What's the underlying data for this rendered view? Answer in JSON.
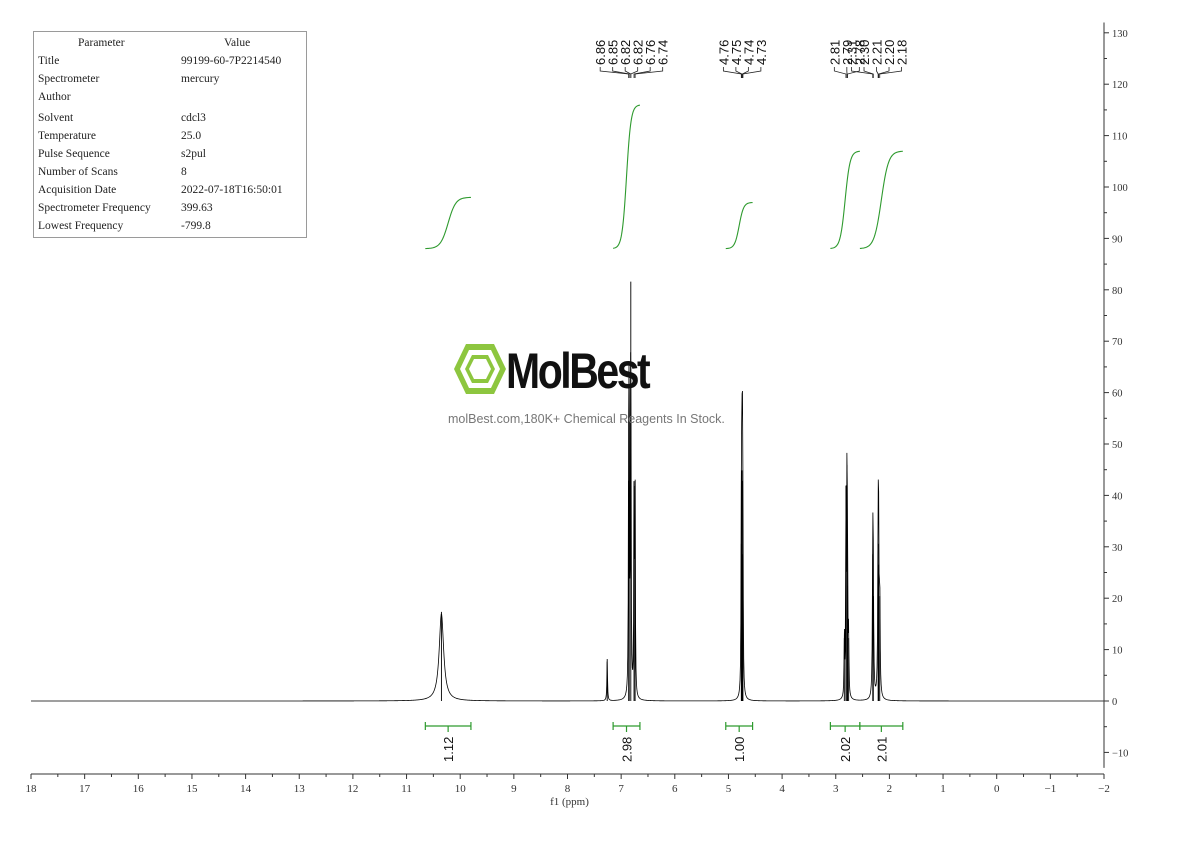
{
  "parameter_table": {
    "header_parameter": "Parameter",
    "header_value": "Value",
    "rows": [
      {
        "label": "Title",
        "value": "99199-60-7P2214540"
      },
      {
        "label": "Spectrometer",
        "value": "mercury"
      },
      {
        "label": "Author",
        "value": ""
      },
      {
        "label": "Solvent",
        "value": "cdcl3"
      },
      {
        "label": "Temperature",
        "value": "25.0"
      },
      {
        "label": "Pulse Sequence",
        "value": "s2pul"
      },
      {
        "label": "Number of Scans",
        "value": "8"
      },
      {
        "label": "Acquisition Date",
        "value": "2022-07-18T16:50:01"
      },
      {
        "label": "Spectrometer Frequency",
        "value": "399.63"
      },
      {
        "label": "Lowest Frequency",
        "value": "-799.8"
      }
    ]
  },
  "watermark": {
    "brand": "MolBest",
    "tagline": "molBest.com,180K+ Chemical Reagents In Stock.",
    "brand_color": "#8dc63f"
  },
  "chart_data": {
    "type": "line",
    "xlabel": "f1 (ppm)",
    "xlim": [
      18,
      -2
    ],
    "ylim": [
      -13,
      132
    ],
    "x_ticks": [
      18,
      17,
      16,
      15,
      14,
      13,
      12,
      11,
      10,
      9,
      8,
      7,
      6,
      5,
      4,
      3,
      2,
      1,
      0,
      -1,
      -2
    ],
    "y_ticks": [
      130,
      120,
      110,
      100,
      90,
      80,
      70,
      60,
      50,
      40,
      30,
      20,
      10,
      0,
      -10
    ],
    "y_axis_side": "right",
    "colors": {
      "spectrum": "#000000",
      "integral": "#2e9a2e",
      "axis": "#333333"
    },
    "peak_label_groups": [
      {
        "labels": [
          "6.86",
          "6.85",
          "6.82",
          "6.82",
          "6.76",
          "6.74"
        ],
        "positions_ppm": [
          6.86,
          6.85,
          6.82,
          6.82,
          6.76,
          6.74
        ]
      },
      {
        "labels": [
          "4.76",
          "4.75",
          "4.74",
          "4.73"
        ],
        "positions_ppm": [
          4.76,
          4.75,
          4.74,
          4.73
        ]
      },
      {
        "labels": [
          "2.81",
          "2.79",
          "2.78"
        ],
        "positions_ppm": [
          2.81,
          2.79,
          2.78
        ]
      },
      {
        "labels": [
          "2.31",
          "2.30",
          "2.21",
          "2.20",
          "2.18"
        ],
        "positions_ppm": [
          2.31,
          2.3,
          2.21,
          2.2,
          2.18
        ]
      }
    ],
    "peaks": [
      {
        "ppm": 10.35,
        "height": 17,
        "width": 0.05
      },
      {
        "ppm": 7.26,
        "height": 8,
        "width": 0.007
      },
      {
        "ppm": 6.86,
        "height": 42,
        "width": 0.006
      },
      {
        "ppm": 6.85,
        "height": 60,
        "width": 0.006
      },
      {
        "ppm": 6.82,
        "height": 80,
        "width": 0.006
      },
      {
        "ppm": 6.76,
        "height": 41,
        "width": 0.006
      },
      {
        "ppm": 6.74,
        "height": 42,
        "width": 0.006
      },
      {
        "ppm": 4.76,
        "height": 30,
        "width": 0.006
      },
      {
        "ppm": 4.75,
        "height": 44,
        "width": 0.006
      },
      {
        "ppm": 4.74,
        "height": 42,
        "width": 0.006
      },
      {
        "ppm": 4.73,
        "height": 28,
        "width": 0.006
      },
      {
        "ppm": 2.84,
        "height": 12,
        "width": 0.006
      },
      {
        "ppm": 2.81,
        "height": 41,
        "width": 0.006
      },
      {
        "ppm": 2.79,
        "height": 45,
        "width": 0.006
      },
      {
        "ppm": 2.78,
        "height": 22,
        "width": 0.006
      },
      {
        "ppm": 2.76,
        "height": 12,
        "width": 0.006
      },
      {
        "ppm": 2.31,
        "height": 28,
        "width": 0.008
      },
      {
        "ppm": 2.3,
        "height": 20,
        "width": 0.008
      },
      {
        "ppm": 2.21,
        "height": 30,
        "width": 0.008
      },
      {
        "ppm": 2.2,
        "height": 26,
        "width": 0.008
      },
      {
        "ppm": 2.18,
        "height": 20,
        "width": 0.008
      }
    ],
    "integrals": [
      {
        "label": "1.12",
        "ppm_from": 10.65,
        "ppm_to": 9.8,
        "value": 1.12,
        "curve_y_from": 88,
        "curve_y_to": 98
      },
      {
        "label": "2.98",
        "ppm_from": 7.15,
        "ppm_to": 6.65,
        "value": 2.98,
        "curve_y_from": 88,
        "curve_y_to": 116
      },
      {
        "label": "1.00",
        "ppm_from": 5.05,
        "ppm_to": 4.55,
        "value": 1.0,
        "curve_y_from": 88,
        "curve_y_to": 97
      },
      {
        "label": "2.02",
        "ppm_from": 3.1,
        "ppm_to": 2.55,
        "value": 2.02,
        "curve_y_from": 88,
        "curve_y_to": 107
      },
      {
        "label": "2.01",
        "ppm_from": 2.55,
        "ppm_to": 1.75,
        "value": 2.01,
        "curve_y_from": 88,
        "curve_y_to": 107
      }
    ]
  }
}
